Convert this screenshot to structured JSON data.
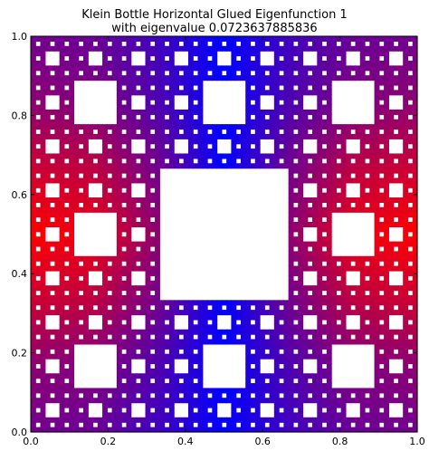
{
  "chart_data": {
    "type": "heatmap",
    "title": "Klein Bottle Horizontal Glued Eigenfunction 1",
    "subtitle": "with eigenvalue 0.0723637885836",
    "xlabel": "",
    "ylabel": "",
    "xlim": [
      0.0,
      1.0
    ],
    "ylim": [
      0.0,
      1.0
    ],
    "x_ticks": [
      "0.0",
      "0.2",
      "0.4",
      "0.6",
      "0.8",
      "1.0"
    ],
    "y_ticks": [
      "0.0",
      "0.2",
      "0.4",
      "0.6",
      "0.8",
      "1.0"
    ],
    "grid": false,
    "legend": "none",
    "fractal_levels": 3,
    "colormap": {
      "low": "#ff0000",
      "high": "#0000ff",
      "hole": "#ffffff"
    },
    "note_values": {
      "x_profile": [
        0.0,
        0.12,
        0.38,
        0.5,
        0.62,
        0.88,
        1.0
      ],
      "y_profile": [
        1.0,
        0.88,
        0.62,
        0.5,
        0.62,
        0.88,
        1.0
      ]
    }
  }
}
